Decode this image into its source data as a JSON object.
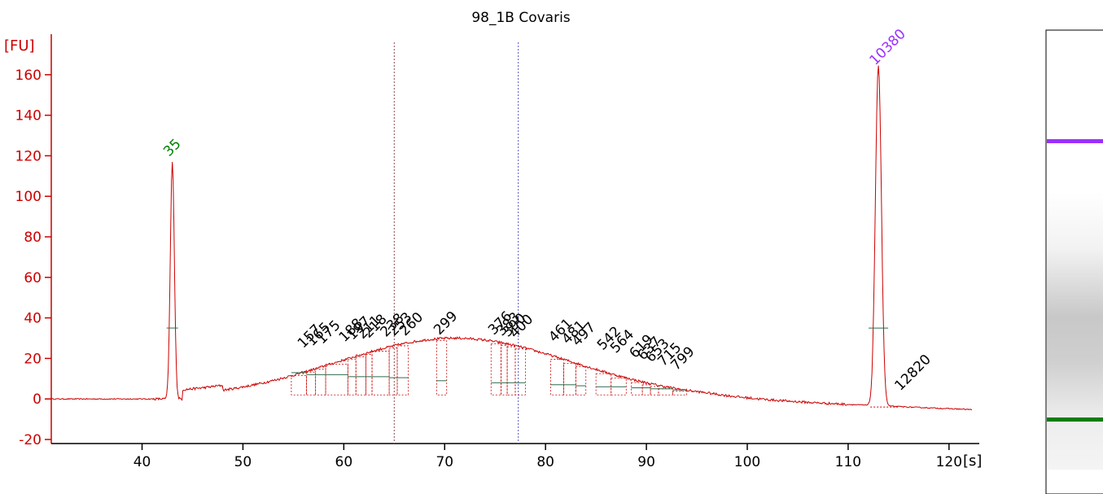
{
  "chart_data": {
    "type": "line",
    "title": "98_1B Covaris",
    "ylabel": "[FU]",
    "xunit": "[s]",
    "xlim": [
      31,
      123
    ],
    "ylim": [
      -22,
      180
    ],
    "xticks": [
      40,
      50,
      60,
      70,
      80,
      90,
      100,
      110,
      120
    ],
    "yticks": [
      -20,
      0,
      20,
      40,
      60,
      80,
      100,
      120,
      140,
      160
    ],
    "markers": [
      {
        "label": "35",
        "x": 43.0,
        "y": 117,
        "color": "#008000"
      },
      {
        "label": "10380",
        "x": 113.0,
        "y": 162,
        "color": "#9b30ff"
      }
    ],
    "peak_labels": [
      {
        "label": "157",
        "x": 56.3,
        "y": 24
      },
      {
        "label": "165",
        "x": 57.2,
        "y": 25
      },
      {
        "label": "175",
        "x": 58.2,
        "y": 26
      },
      {
        "label": "188",
        "x": 60.4,
        "y": 27
      },
      {
        "label": "197",
        "x": 61.2,
        "y": 28
      },
      {
        "label": "211",
        "x": 62.2,
        "y": 28.5
      },
      {
        "label": "218",
        "x": 62.8,
        "y": 29
      },
      {
        "label": "238",
        "x": 64.5,
        "y": 29.5
      },
      {
        "label": "253",
        "x": 65.3,
        "y": 30
      },
      {
        "label": "260",
        "x": 66.4,
        "y": 30
      },
      {
        "label": "299",
        "x": 69.8,
        "y": 30.5
      },
      {
        "label": "376",
        "x": 75.2,
        "y": 30.5
      },
      {
        "label": "383",
        "x": 76.0,
        "y": 30
      },
      {
        "label": "390",
        "x": 76.6,
        "y": 29.5
      },
      {
        "label": "400",
        "x": 77.3,
        "y": 29
      },
      {
        "label": "461",
        "x": 81.2,
        "y": 27
      },
      {
        "label": "481",
        "x": 82.5,
        "y": 26
      },
      {
        "label": "497",
        "x": 83.5,
        "y": 25
      },
      {
        "label": "542",
        "x": 86.0,
        "y": 23
      },
      {
        "label": "564",
        "x": 87.3,
        "y": 21.5
      },
      {
        "label": "619",
        "x": 89.2,
        "y": 19
      },
      {
        "label": "637",
        "x": 90.0,
        "y": 18
      },
      {
        "label": "653",
        "x": 90.8,
        "y": 17
      },
      {
        "label": "715",
        "x": 92.0,
        "y": 15
      },
      {
        "label": "799",
        "x": 93.3,
        "y": 13
      },
      {
        "label": "12820",
        "x": 115.5,
        "y": 3
      }
    ],
    "noise_seeds": [
      3,
      7,
      11,
      13
    ]
  },
  "gel": {
    "bands": [
      {
        "color": "#9b30ff"
      },
      {
        "color": "#008000"
      }
    ]
  }
}
